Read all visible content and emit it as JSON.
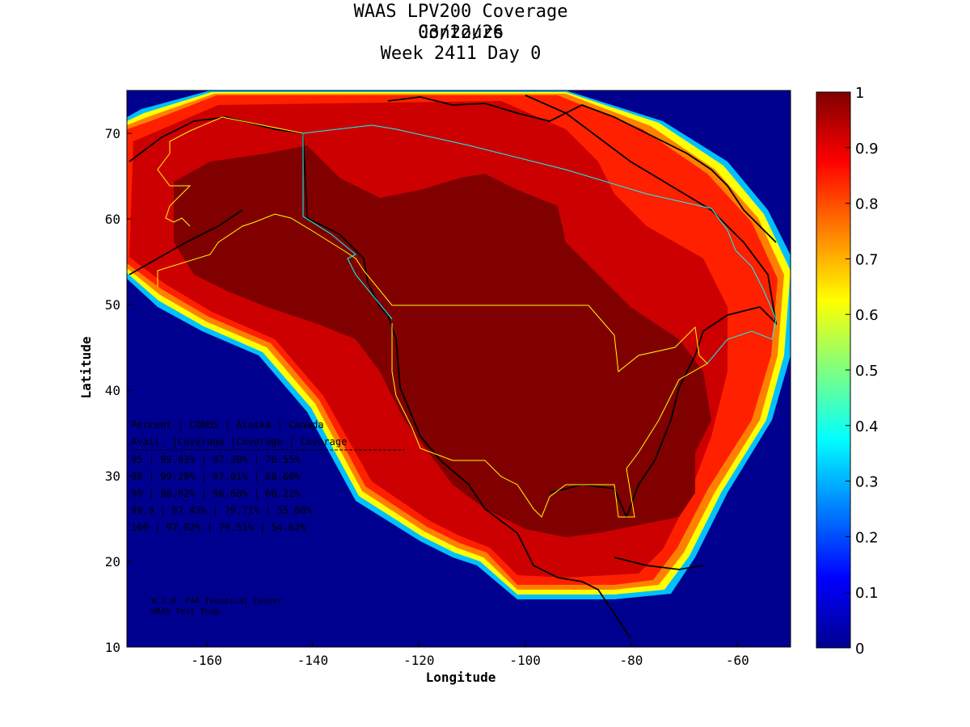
{
  "title": {
    "line1": "WAAS LPV200 Coverage Contours",
    "line2": "03/22/26",
    "line3": "Week 2411 Day 0"
  },
  "axes": {
    "xlabel": "Longitude",
    "ylabel": "Latitude",
    "xticks": [
      "-160",
      "-140",
      "-120",
      "-100",
      "-80",
      "-60"
    ],
    "yticks": [
      "10",
      "20",
      "30",
      "40",
      "50",
      "60",
      "70"
    ],
    "xlim": [
      -175,
      -50
    ],
    "ylim": [
      10,
      75
    ]
  },
  "colorbar": {
    "ticks": [
      "0",
      "0.1",
      "0.2",
      "0.3",
      "0.4",
      "0.5",
      "0.6",
      "0.7",
      "0.8",
      "0.9",
      "1"
    ],
    "colormap": "jet",
    "range": [
      0,
      1
    ]
  },
  "coverage_table": {
    "header1": "Percent | CONUS   | Alaska  | Canada",
    "header2": " Avail. |Coverage |Coverage | Coverage",
    "rows": [
      " 95    | 99.83% | 97.39% | 76.55%",
      " 98    | 99.29% | 97.01% | 68.60%",
      " 99    | 98.82% | 96.68% | 66.22%",
      "99.9   | 97.43% | 79.71% | 55.08%",
      " 100   | 97.02% | 79.51% | 54.62%"
    ]
  },
  "credit": {
    "line1": "W.J.H. FAA Technical Center",
    "line2": "WAAS Test Team"
  },
  "colors": {
    "ocean": "#00008f",
    "land_high": "#800000",
    "coverage_mid": "#cc0000",
    "border_us": "#ffff00",
    "border_canada": "#00ffff"
  }
}
